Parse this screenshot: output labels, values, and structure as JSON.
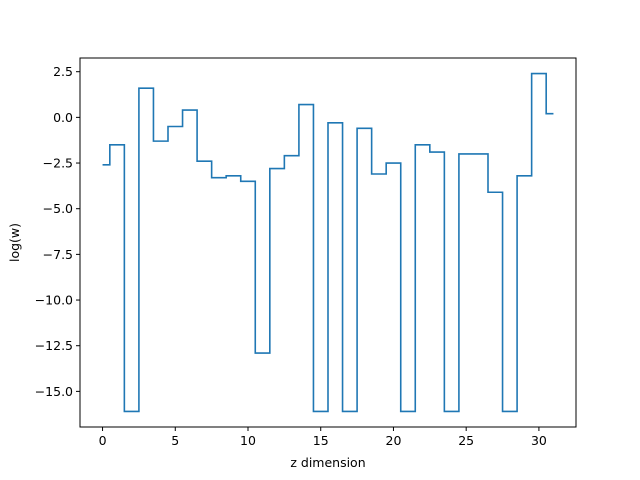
{
  "chart_data": {
    "type": "line",
    "drawstyle": "steps-mid",
    "title": "",
    "xlabel": "z dimension",
    "ylabel": "log(w)",
    "xlim": [
      -1.55,
      32.55
    ],
    "ylim": [
      -16.95,
      3.25
    ],
    "xticks": [
      0,
      5,
      10,
      15,
      20,
      25,
      30
    ],
    "yticks": [
      2.5,
      0.0,
      -2.5,
      -5.0,
      -7.5,
      -10.0,
      -12.5,
      -15.0
    ],
    "xtick_labels": [
      "0",
      "5",
      "10",
      "15",
      "20",
      "25",
      "30"
    ],
    "ytick_labels": [
      "2.5",
      "0.0",
      "−2.5",
      "−5.0",
      "−7.5",
      "−10.0",
      "−12.5",
      "−15.0"
    ],
    "grid": false,
    "series": [
      {
        "color": "#1f77b4",
        "x": [
          0,
          1,
          2,
          3,
          4,
          5,
          6,
          7,
          8,
          9,
          10,
          11,
          12,
          13,
          14,
          15,
          16,
          17,
          18,
          19,
          20,
          21,
          22,
          23,
          24,
          25,
          26,
          27,
          28,
          29,
          30,
          31
        ],
        "values": [
          -2.6,
          -1.5,
          -16.1,
          1.6,
          -1.3,
          -0.5,
          0.4,
          -2.4,
          -3.3,
          -3.2,
          -3.5,
          -12.9,
          -2.8,
          -2.1,
          0.7,
          -16.1,
          -0.3,
          -16.1,
          -0.6,
          -3.1,
          -2.5,
          -16.1,
          -1.5,
          -1.9,
          -16.1,
          -2.0,
          -2.0,
          -4.1,
          -16.1,
          -3.2,
          2.4,
          0.2
        ]
      }
    ]
  }
}
